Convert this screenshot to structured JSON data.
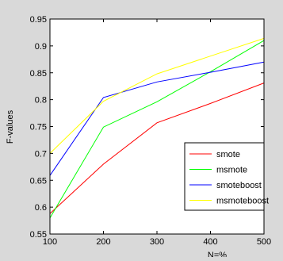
{
  "chart_data": {
    "type": "line",
    "title": "",
    "xlabel": "N=%",
    "ylabel": "F-values",
    "x": [
      100,
      200,
      300,
      400,
      500
    ],
    "xlim": [
      100,
      500
    ],
    "ylim": [
      0.55,
      0.95
    ],
    "xticks": [
      100,
      200,
      300,
      400,
      500
    ],
    "yticks": [
      0.55,
      0.6,
      0.65,
      0.7,
      0.75,
      0.8,
      0.85,
      0.9,
      0.95
    ],
    "grid": false,
    "legend_position": "bottom-right",
    "series": [
      {
        "name": "smote",
        "color": "#ff0000",
        "values": [
          0.588,
          0.68,
          0.757,
          0.793,
          0.831
        ]
      },
      {
        "name": "msmote",
        "color": "#00ff00",
        "values": [
          0.58,
          0.749,
          0.796,
          0.852,
          0.91
        ]
      },
      {
        "name": "smoteboost",
        "color": "#0000ff",
        "values": [
          0.659,
          0.804,
          0.833,
          0.851,
          0.87
        ]
      },
      {
        "name": "msmoteboost",
        "color": "#ffff00",
        "values": [
          0.7,
          0.797,
          0.848,
          0.881,
          0.914
        ]
      }
    ]
  }
}
